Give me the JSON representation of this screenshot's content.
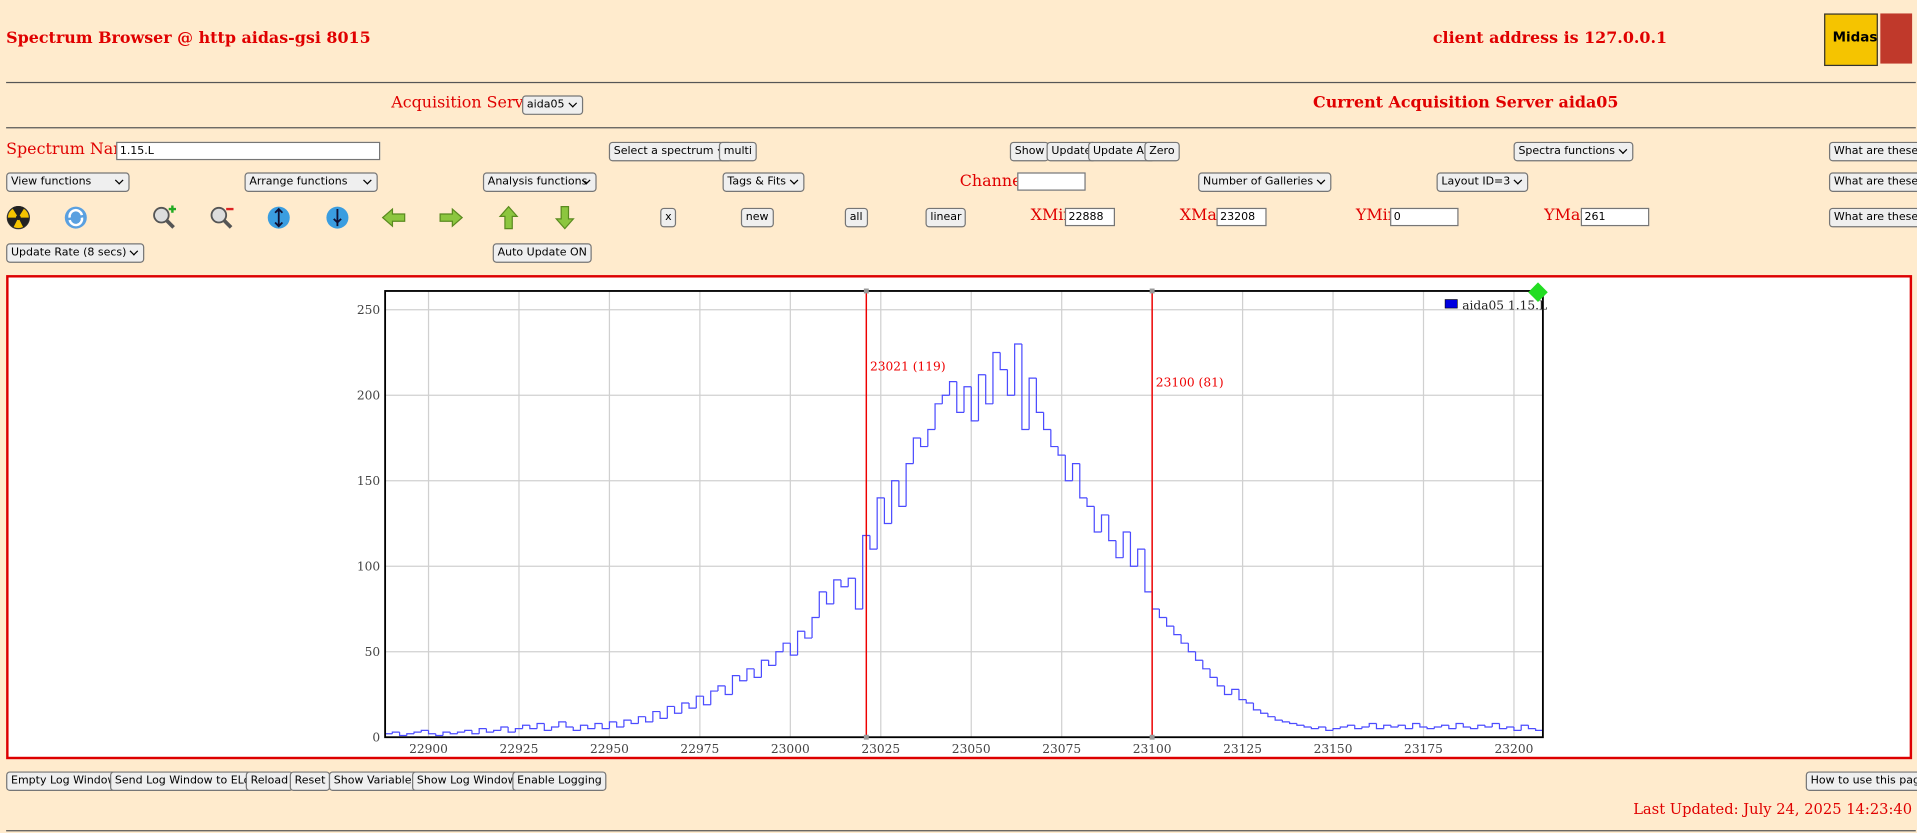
{
  "header": {
    "title": "Spectrum Browser @ http aidas-gsi 8015",
    "client": "client address is 127.0.0.1",
    "logo": "Midas"
  },
  "servers": {
    "label": "Acquisition Servers",
    "selected": "aida05",
    "current": "Current Acquisition Server aida05"
  },
  "spectrum_row": {
    "label": "Spectrum Name:",
    "name": "1.15.L",
    "select": "Select a spectrum",
    "multi": "multi",
    "buttons": [
      "Show",
      "Update",
      "Update All",
      "Zero"
    ],
    "spectra_functions": "Spectra functions",
    "help": "What are these?"
  },
  "function_row": {
    "selects": [
      "View functions",
      "Arrange functions",
      "Analysis functions",
      "Tags & Fits"
    ],
    "channel_label": "Channel:",
    "galleries": "Number of Galleries",
    "layout": "Layout ID=3",
    "help": "What are these?"
  },
  "range_row": {
    "buttons": [
      "x",
      "new",
      "all",
      "linear"
    ],
    "xmin_label": "XMin",
    "xmax_label": "XMax",
    "ymin_label": "YMin",
    "ymax_label": "YMax",
    "help": "What are these?"
  },
  "update_row": {
    "rate": "Update Rate (8 secs)",
    "auto": "Auto Update ON"
  },
  "footer": {
    "buttons": [
      "Empty Log Window",
      "Send Log Window to ELog",
      "Reload",
      "Reset",
      "Show Variables",
      "Show Log Window",
      "Enable Logging"
    ],
    "help": "How to use this page",
    "updated": "Last Updated: July 24, 2025 14:23:40"
  },
  "chart_data": {
    "type": "histogram",
    "bins": [
      22888,
      22890,
      22892,
      22894,
      22896,
      22898,
      22900,
      22902,
      22904,
      22906,
      22908,
      22910,
      22912,
      22914,
      22916,
      22918,
      22920,
      22922,
      22924,
      22926,
      22928,
      22930,
      22932,
      22934,
      22936,
      22938,
      22940,
      22942,
      22944,
      22946,
      22948,
      22950,
      22952,
      22954,
      22956,
      22958,
      22960,
      22962,
      22964,
      22966,
      22968,
      22970,
      22972,
      22974,
      22976,
      22978,
      22980,
      22982,
      22984,
      22986,
      22988,
      22990,
      22992,
      22994,
      22996,
      22998,
      23000,
      23002,
      23004,
      23006,
      23008,
      23010,
      23012,
      23014,
      23016,
      23018,
      23020,
      23022,
      23024,
      23026,
      23028,
      23030,
      23032,
      23034,
      23036,
      23038,
      23040,
      23042,
      23044,
      23046,
      23048,
      23050,
      23052,
      23054,
      23056,
      23058,
      23060,
      23062,
      23064,
      23066,
      23068,
      23070,
      23072,
      23074,
      23076,
      23078,
      23080,
      23082,
      23084,
      23086,
      23088,
      23090,
      23092,
      23094,
      23096,
      23098,
      23100,
      23102,
      23104,
      23106,
      23108,
      23110,
      23112,
      23114,
      23116,
      23118,
      23120,
      23122,
      23124,
      23126,
      23128,
      23130,
      23132,
      23134,
      23136,
      23138,
      23140,
      23142,
      23144,
      23146,
      23148,
      23150,
      23152,
      23154,
      23156,
      23158,
      23160,
      23162,
      23164,
      23166,
      23168,
      23170,
      23172,
      23174,
      23176,
      23178,
      23180,
      23182,
      23184,
      23186,
      23188,
      23190,
      23192,
      23194,
      23196,
      23198,
      23200,
      23202,
      23204,
      23206,
      23208
    ],
    "series": [
      {
        "name": "aida05 1.15.L",
        "color": "#4b4bff",
        "values": [
          2,
          3,
          1,
          2,
          3,
          4,
          2,
          1,
          3,
          2,
          3,
          4,
          2,
          5,
          3,
          4,
          6,
          3,
          5,
          7,
          5,
          8,
          4,
          6,
          9,
          6,
          4,
          7,
          5,
          8,
          5,
          9,
          6,
          10,
          8,
          12,
          9,
          15,
          11,
          18,
          14,
          20,
          17,
          24,
          19,
          27,
          30,
          25,
          36,
          33,
          40,
          35,
          45,
          42,
          50,
          55,
          48,
          62,
          58,
          70,
          85,
          78,
          92,
          88,
          93,
          75,
          118,
          110,
          140,
          125,
          150,
          135,
          160,
          175,
          170,
          180,
          195,
          200,
          208,
          190,
          205,
          185,
          212,
          195,
          225,
          215,
          200,
          230,
          180,
          210,
          190,
          180,
          170,
          165,
          150,
          160,
          140,
          135,
          120,
          130,
          115,
          105,
          120,
          100,
          110,
          85,
          75,
          70,
          65,
          60,
          55,
          50,
          45,
          40,
          35,
          30,
          25,
          28,
          22,
          20,
          16,
          14,
          12,
          10,
          9,
          8,
          7,
          6,
          5,
          6,
          4,
          5,
          6,
          7,
          5,
          6,
          8,
          5,
          7,
          6,
          7,
          5,
          8,
          6,
          5,
          6,
          7,
          5,
          8,
          6,
          5,
          7,
          6,
          8,
          5,
          6,
          4,
          7,
          5,
          4
        ]
      }
    ],
    "xlim": [
      22888,
      23208
    ],
    "ylim": [
      0,
      261
    ],
    "xticks": [
      22900,
      22925,
      22950,
      22975,
      23000,
      23025,
      23050,
      23075,
      23100,
      23125,
      23150,
      23175,
      23200
    ],
    "yticks": [
      0,
      50,
      100,
      150,
      200,
      250
    ],
    "grid": true,
    "markers": [
      {
        "x": 23021,
        "label": "23021 (119)"
      },
      {
        "x": 23100,
        "label": "23100 (81)"
      }
    ]
  }
}
